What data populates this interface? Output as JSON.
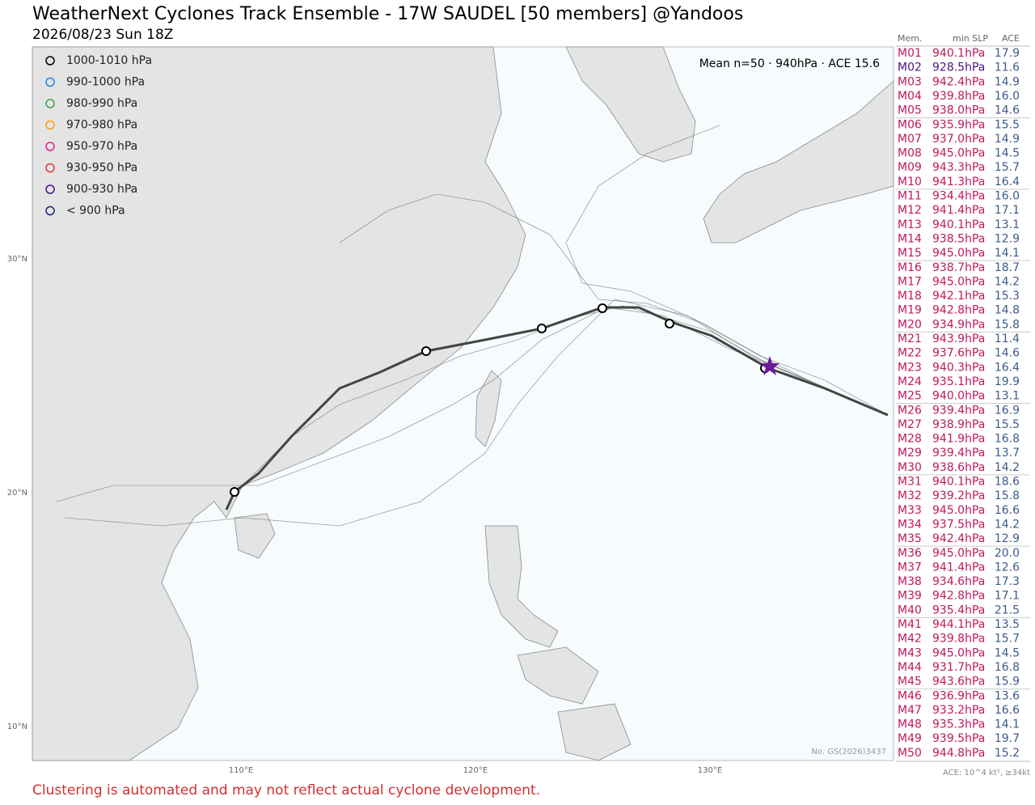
{
  "header": {
    "title": "WeatherNext Cyclones Track Ensemble - 17W SAUDEL [50 members] @Yandoos",
    "subtitle": "2026/08/23 Sun 18Z"
  },
  "legend": [
    {
      "label": "1000-1010 hPa",
      "color": "#000000"
    },
    {
      "label": "990-1000 hPa",
      "color": "#1e88e5"
    },
    {
      "label": "980-990 hPa",
      "color": "#43a047"
    },
    {
      "label": "970-980 hPa",
      "color": "#ffa000"
    },
    {
      "label": "950-970 hPa",
      "color": "#e91e8c"
    },
    {
      "label": "930-950 hPa",
      "color": "#e53935"
    },
    {
      "label": "900-930 hPa",
      "color": "#4a148c"
    },
    {
      "label": "< 900 hPa",
      "color": "#1a237e"
    }
  ],
  "mean_note": "Mean n=50 · 940hPa · ACE 15.6",
  "lat_labels": [
    "30°N",
    "20°N",
    "10°N"
  ],
  "lon_labels": [
    "110°E",
    "120°E",
    "130°E"
  ],
  "watermark": "No. GS(2026)3437",
  "table": {
    "columns": [
      "Mem.",
      "min SLP",
      "ACE"
    ],
    "rows": [
      {
        "id": "M01",
        "slp": "940.1hPa",
        "ace": "17.9",
        "color": "#c2185b"
      },
      {
        "id": "M02",
        "slp": "928.5hPa",
        "ace": "11.6",
        "color": "#4a148c"
      },
      {
        "id": "M03",
        "slp": "942.4hPa",
        "ace": "14.9",
        "color": "#c2185b"
      },
      {
        "id": "M04",
        "slp": "939.8hPa",
        "ace": "16.0",
        "color": "#c2185b"
      },
      {
        "id": "M05",
        "slp": "938.0hPa",
        "ace": "14.6",
        "color": "#c2185b"
      },
      {
        "id": "M06",
        "slp": "935.9hPa",
        "ace": "15.5",
        "color": "#c2185b"
      },
      {
        "id": "M07",
        "slp": "937.0hPa",
        "ace": "14.9",
        "color": "#c2185b"
      },
      {
        "id": "M08",
        "slp": "945.0hPa",
        "ace": "14.5",
        "color": "#c2185b"
      },
      {
        "id": "M09",
        "slp": "943.3hPa",
        "ace": "15.7",
        "color": "#c2185b"
      },
      {
        "id": "M10",
        "slp": "941.3hPa",
        "ace": "16.4",
        "color": "#c2185b"
      },
      {
        "id": "M11",
        "slp": "934.4hPa",
        "ace": "16.0",
        "color": "#c2185b"
      },
      {
        "id": "M12",
        "slp": "941.4hPa",
        "ace": "17.1",
        "color": "#c2185b"
      },
      {
        "id": "M13",
        "slp": "940.1hPa",
        "ace": "13.1",
        "color": "#c2185b"
      },
      {
        "id": "M14",
        "slp": "938.5hPa",
        "ace": "12.9",
        "color": "#c2185b"
      },
      {
        "id": "M15",
        "slp": "945.0hPa",
        "ace": "14.1",
        "color": "#c2185b"
      },
      {
        "id": "M16",
        "slp": "938.7hPa",
        "ace": "18.7",
        "color": "#c2185b"
      },
      {
        "id": "M17",
        "slp": "945.0hPa",
        "ace": "14.2",
        "color": "#c2185b"
      },
      {
        "id": "M18",
        "slp": "942.1hPa",
        "ace": "15.3",
        "color": "#c2185b"
      },
      {
        "id": "M19",
        "slp": "942.8hPa",
        "ace": "14.8",
        "color": "#c2185b"
      },
      {
        "id": "M20",
        "slp": "934.9hPa",
        "ace": "15.8",
        "color": "#c2185b"
      },
      {
        "id": "M21",
        "slp": "943.9hPa",
        "ace": "11.4",
        "color": "#c2185b"
      },
      {
        "id": "M22",
        "slp": "937.6hPa",
        "ace": "14.6",
        "color": "#c2185b"
      },
      {
        "id": "M23",
        "slp": "940.3hPa",
        "ace": "16.4",
        "color": "#c2185b"
      },
      {
        "id": "M24",
        "slp": "935.1hPa",
        "ace": "19.9",
        "color": "#c2185b"
      },
      {
        "id": "M25",
        "slp": "940.0hPa",
        "ace": "13.1",
        "color": "#c2185b"
      },
      {
        "id": "M26",
        "slp": "939.4hPa",
        "ace": "16.9",
        "color": "#c2185b"
      },
      {
        "id": "M27",
        "slp": "938.9hPa",
        "ace": "15.5",
        "color": "#c2185b"
      },
      {
        "id": "M28",
        "slp": "941.9hPa",
        "ace": "16.8",
        "color": "#c2185b"
      },
      {
        "id": "M29",
        "slp": "939.4hPa",
        "ace": "13.7",
        "color": "#c2185b"
      },
      {
        "id": "M30",
        "slp": "938.6hPa",
        "ace": "14.2",
        "color": "#c2185b"
      },
      {
        "id": "M31",
        "slp": "940.1hPa",
        "ace": "18.6",
        "color": "#c2185b"
      },
      {
        "id": "M32",
        "slp": "939.2hPa",
        "ace": "15.8",
        "color": "#c2185b"
      },
      {
        "id": "M33",
        "slp": "945.0hPa",
        "ace": "16.6",
        "color": "#c2185b"
      },
      {
        "id": "M34",
        "slp": "937.5hPa",
        "ace": "14.2",
        "color": "#c2185b"
      },
      {
        "id": "M35",
        "slp": "942.4hPa",
        "ace": "12.9",
        "color": "#c2185b"
      },
      {
        "id": "M36",
        "slp": "945.0hPa",
        "ace": "20.0",
        "color": "#c2185b"
      },
      {
        "id": "M37",
        "slp": "941.4hPa",
        "ace": "12.6",
        "color": "#c2185b"
      },
      {
        "id": "M38",
        "slp": "934.6hPa",
        "ace": "17.3",
        "color": "#c2185b"
      },
      {
        "id": "M39",
        "slp": "942.8hPa",
        "ace": "17.1",
        "color": "#c2185b"
      },
      {
        "id": "M40",
        "slp": "935.4hPa",
        "ace": "21.5",
        "color": "#c2185b"
      },
      {
        "id": "M41",
        "slp": "944.1hPa",
        "ace": "13.5",
        "color": "#c2185b"
      },
      {
        "id": "M42",
        "slp": "939.8hPa",
        "ace": "15.7",
        "color": "#c2185b"
      },
      {
        "id": "M43",
        "slp": "945.0hPa",
        "ace": "14.5",
        "color": "#c2185b"
      },
      {
        "id": "M44",
        "slp": "931.7hPa",
        "ace": "16.8",
        "color": "#c2185b"
      },
      {
        "id": "M45",
        "slp": "943.6hPa",
        "ace": "15.9",
        "color": "#c2185b"
      },
      {
        "id": "M46",
        "slp": "936.9hPa",
        "ace": "13.6",
        "color": "#c2185b"
      },
      {
        "id": "M47",
        "slp": "933.2hPa",
        "ace": "16.6",
        "color": "#c2185b"
      },
      {
        "id": "M48",
        "slp": "935.3hPa",
        "ace": "14.1",
        "color": "#c2185b"
      },
      {
        "id": "M49",
        "slp": "939.5hPa",
        "ace": "19.7",
        "color": "#c2185b"
      },
      {
        "id": "M50",
        "slp": "944.8hPa",
        "ace": "15.2",
        "color": "#c2185b"
      }
    ],
    "footnote": "ACE: 10^4 kt², ≥34kt"
  },
  "disclaimer": "Clustering is automated and may not reflect actual cyclone development."
}
